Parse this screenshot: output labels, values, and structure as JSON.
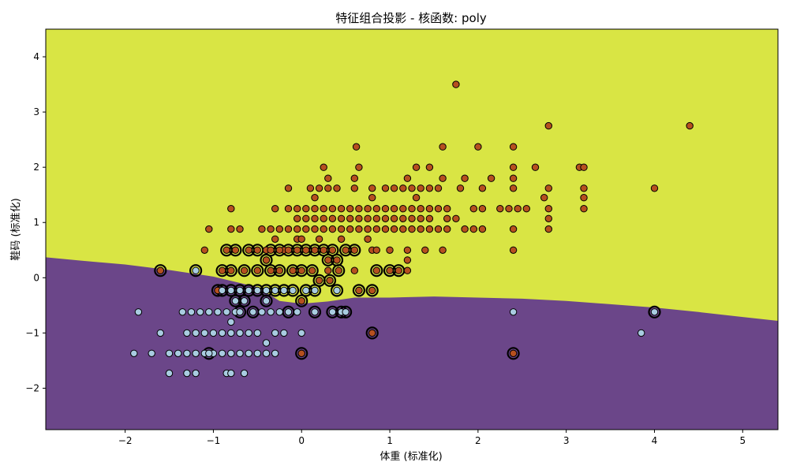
{
  "chart_data": {
    "type": "scatter",
    "title": "特征组合投影 - 核函数: poly",
    "xlabel": "体重 (标准化)",
    "ylabel": "鞋码 (标准化)",
    "xlim": [
      -2.9,
      5.4
    ],
    "ylim": [
      -2.75,
      4.5
    ],
    "xticks": [
      -2,
      -1,
      0,
      1,
      2,
      3,
      4,
      5
    ],
    "xtick_labels": [
      "−2",
      "−1",
      "0",
      "1",
      "2",
      "3",
      "4",
      "5"
    ],
    "yticks": [
      -2,
      -1,
      0,
      1,
      2,
      3,
      4
    ],
    "ytick_labels": [
      "−2",
      "−1",
      "0",
      "1",
      "2",
      "3",
      "4"
    ],
    "grid": false,
    "colors": {
      "region_upper": "#d9e544",
      "region_lower": "#6b4689",
      "class_a": "#b6501f",
      "class_b": "#a9cce1",
      "edge": "#000000"
    },
    "decision_boundary": [
      [
        -2.9,
        0.37
      ],
      [
        -2.5,
        0.31
      ],
      [
        -2.0,
        0.24
      ],
      [
        -1.5,
        0.14
      ],
      [
        -1.0,
        0.02
      ],
      [
        -0.5,
        -0.17
      ],
      [
        -0.25,
        -0.42
      ],
      [
        0.0,
        -0.47
      ],
      [
        0.3,
        -0.43
      ],
      [
        0.6,
        -0.36
      ],
      [
        1.0,
        -0.36
      ],
      [
        1.5,
        -0.34
      ],
      [
        2.0,
        -0.36
      ],
      [
        2.5,
        -0.38
      ],
      [
        3.0,
        -0.42
      ],
      [
        3.5,
        -0.48
      ],
      [
        4.0,
        -0.54
      ],
      [
        4.5,
        -0.62
      ],
      [
        5.0,
        -0.71
      ],
      [
        5.4,
        -0.78
      ]
    ],
    "series": [
      {
        "class": "A",
        "points": [
          [
            1.75,
            3.5
          ],
          [
            0.62,
            2.37
          ],
          [
            1.6,
            2.37
          ],
          [
            2.0,
            2.37
          ],
          [
            2.4,
            2.37
          ],
          [
            2.8,
            2.75
          ],
          [
            4.4,
            2.75
          ],
          [
            0.25,
            2.0
          ],
          [
            0.65,
            2.0
          ],
          [
            1.3,
            2.0
          ],
          [
            1.45,
            2.0
          ],
          [
            2.4,
            2.0
          ],
          [
            2.65,
            2.0
          ],
          [
            3.15,
            2.0
          ],
          [
            3.2,
            2.0
          ],
          [
            -0.15,
            1.62
          ],
          [
            0.1,
            1.62
          ],
          [
            0.2,
            1.62
          ],
          [
            0.3,
            1.62
          ],
          [
            0.4,
            1.62
          ],
          [
            0.6,
            1.62
          ],
          [
            0.8,
            1.62
          ],
          [
            0.95,
            1.62
          ],
          [
            1.05,
            1.62
          ],
          [
            1.15,
            1.62
          ],
          [
            1.25,
            1.62
          ],
          [
            1.35,
            1.62
          ],
          [
            1.45,
            1.62
          ],
          [
            1.55,
            1.62
          ],
          [
            1.8,
            1.62
          ],
          [
            2.05,
            1.62
          ],
          [
            2.4,
            1.62
          ],
          [
            2.8,
            1.62
          ],
          [
            3.2,
            1.62
          ],
          [
            4.0,
            1.62
          ],
          [
            0.3,
            1.8
          ],
          [
            0.6,
            1.8
          ],
          [
            1.2,
            1.8
          ],
          [
            1.6,
            1.8
          ],
          [
            1.85,
            1.8
          ],
          [
            2.15,
            1.8
          ],
          [
            2.4,
            1.8
          ],
          [
            0.15,
            1.45
          ],
          [
            0.8,
            1.45
          ],
          [
            1.3,
            1.45
          ],
          [
            2.75,
            1.45
          ],
          [
            3.2,
            1.45
          ],
          [
            -0.8,
            1.25
          ],
          [
            -0.3,
            1.25
          ],
          [
            -0.15,
            1.25
          ],
          [
            -0.05,
            1.25
          ],
          [
            0.05,
            1.25
          ],
          [
            0.15,
            1.25
          ],
          [
            0.25,
            1.25
          ],
          [
            0.35,
            1.25
          ],
          [
            0.45,
            1.25
          ],
          [
            0.55,
            1.25
          ],
          [
            0.65,
            1.25
          ],
          [
            0.75,
            1.25
          ],
          [
            0.85,
            1.25
          ],
          [
            0.95,
            1.25
          ],
          [
            1.05,
            1.25
          ],
          [
            1.15,
            1.25
          ],
          [
            1.25,
            1.25
          ],
          [
            1.35,
            1.25
          ],
          [
            1.45,
            1.25
          ],
          [
            1.55,
            1.25
          ],
          [
            1.65,
            1.25
          ],
          [
            1.95,
            1.25
          ],
          [
            2.05,
            1.25
          ],
          [
            2.25,
            1.25
          ],
          [
            2.35,
            1.25
          ],
          [
            2.45,
            1.25
          ],
          [
            2.55,
            1.25
          ],
          [
            2.8,
            1.25
          ],
          [
            3.2,
            1.25
          ],
          [
            -0.05,
            1.07
          ],
          [
            0.05,
            1.07
          ],
          [
            0.15,
            1.07
          ],
          [
            0.25,
            1.07
          ],
          [
            0.35,
            1.07
          ],
          [
            0.45,
            1.07
          ],
          [
            0.55,
            1.07
          ],
          [
            0.65,
            1.07
          ],
          [
            0.75,
            1.07
          ],
          [
            0.85,
            1.07
          ],
          [
            0.95,
            1.07
          ],
          [
            1.05,
            1.07
          ],
          [
            1.15,
            1.07
          ],
          [
            1.25,
            1.07
          ],
          [
            1.35,
            1.07
          ],
          [
            1.45,
            1.07
          ],
          [
            1.65,
            1.07
          ],
          [
            1.75,
            1.07
          ],
          [
            2.8,
            1.07
          ],
          [
            -1.05,
            0.88
          ],
          [
            -0.8,
            0.88
          ],
          [
            -0.7,
            0.88
          ],
          [
            -0.45,
            0.88
          ],
          [
            -0.35,
            0.88
          ],
          [
            -0.25,
            0.88
          ],
          [
            -0.15,
            0.88
          ],
          [
            -0.05,
            0.88
          ],
          [
            0.05,
            0.88
          ],
          [
            0.15,
            0.88
          ],
          [
            0.25,
            0.88
          ],
          [
            0.35,
            0.88
          ],
          [
            0.45,
            0.88
          ],
          [
            0.55,
            0.88
          ],
          [
            0.65,
            0.88
          ],
          [
            0.75,
            0.88
          ],
          [
            0.85,
            0.88
          ],
          [
            0.95,
            0.88
          ],
          [
            1.05,
            0.88
          ],
          [
            1.15,
            0.88
          ],
          [
            1.25,
            0.88
          ],
          [
            1.35,
            0.88
          ],
          [
            1.45,
            0.88
          ],
          [
            1.55,
            0.88
          ],
          [
            1.65,
            0.88
          ],
          [
            1.85,
            0.88
          ],
          [
            1.95,
            0.88
          ],
          [
            2.05,
            0.88
          ],
          [
            2.4,
            0.88
          ],
          [
            2.8,
            0.88
          ],
          [
            -0.3,
            0.7
          ],
          [
            -0.05,
            0.7
          ],
          [
            0.0,
            0.7
          ],
          [
            0.2,
            0.7
          ],
          [
            0.45,
            0.7
          ],
          [
            0.75,
            0.7
          ],
          [
            -1.1,
            0.5
          ],
          [
            -0.4,
            0.5
          ],
          [
            -0.2,
            0.5
          ],
          [
            0.8,
            0.5
          ],
          [
            1.0,
            0.5
          ],
          [
            1.2,
            0.5
          ],
          [
            1.4,
            0.5
          ],
          [
            1.6,
            0.5
          ],
          [
            2.4,
            0.5
          ],
          [
            0.85,
            0.5
          ],
          [
            1.2,
            0.32
          ],
          [
            0.3,
            0.32
          ],
          [
            1.2,
            0.13
          ],
          [
            0.6,
            0.13
          ],
          [
            0.3,
            0.13
          ],
          [
            -1.6,
            0.13
          ],
          [
            -0.4,
            0.32
          ],
          [
            -0.1,
            0.13
          ],
          [
            0.2,
            -0.05
          ],
          [
            0.32,
            -0.05
          ],
          [
            -0.95,
            -0.23
          ],
          [
            0.8,
            -0.23
          ],
          [
            0.65,
            -0.23
          ],
          [
            0.0,
            -0.42
          ],
          [
            0.8,
            -1.0
          ],
          [
            0.0,
            -1.37
          ],
          [
            2.4,
            -1.37
          ]
        ],
        "support_vectors": [
          [
            -1.6,
            0.13
          ],
          [
            -0.4,
            0.32
          ],
          [
            0.3,
            0.32
          ],
          [
            0.4,
            0.32
          ],
          [
            -0.1,
            0.13
          ],
          [
            0.2,
            -0.05
          ],
          [
            0.32,
            -0.05
          ],
          [
            -0.95,
            -0.23
          ],
          [
            0.65,
            -0.23
          ],
          [
            0.8,
            -0.23
          ],
          [
            0.0,
            -0.42
          ],
          [
            0.8,
            -1.0
          ],
          [
            0.0,
            -1.37
          ],
          [
            2.4,
            -1.37
          ],
          [
            -0.85,
            0.5
          ],
          [
            -0.75,
            0.5
          ],
          [
            -0.6,
            0.5
          ],
          [
            -0.5,
            0.5
          ],
          [
            -0.35,
            0.5
          ],
          [
            -0.25,
            0.5
          ],
          [
            -0.15,
            0.5
          ],
          [
            -0.05,
            0.5
          ],
          [
            0.05,
            0.5
          ],
          [
            0.15,
            0.5
          ],
          [
            0.25,
            0.5
          ],
          [
            0.35,
            0.5
          ],
          [
            0.5,
            0.5
          ],
          [
            0.6,
            0.5
          ],
          [
            -0.9,
            0.13
          ],
          [
            -0.8,
            0.13
          ],
          [
            -0.65,
            0.13
          ],
          [
            -0.5,
            0.13
          ],
          [
            -0.35,
            0.13
          ],
          [
            -0.25,
            0.13
          ],
          [
            0.0,
            0.13
          ],
          [
            0.12,
            0.13
          ],
          [
            0.42,
            0.13
          ],
          [
            0.85,
            0.13
          ],
          [
            1.0,
            0.13
          ],
          [
            1.1,
            0.13
          ]
        ]
      },
      {
        "class": "B",
        "points": [
          [
            -1.85,
            -0.62
          ],
          [
            -1.35,
            -0.62
          ],
          [
            -1.25,
            -0.62
          ],
          [
            -1.15,
            -0.62
          ],
          [
            -1.05,
            -0.62
          ],
          [
            -0.95,
            -0.62
          ],
          [
            -0.85,
            -0.62
          ],
          [
            -0.75,
            -0.62
          ],
          [
            -0.55,
            -0.62
          ],
          [
            -0.45,
            -0.62
          ],
          [
            -0.35,
            -0.62
          ],
          [
            -0.25,
            -0.62
          ],
          [
            -0.15,
            -0.62
          ],
          [
            -0.05,
            -0.62
          ],
          [
            2.4,
            -0.62
          ],
          [
            -0.8,
            -0.8
          ],
          [
            -1.6,
            -1.0
          ],
          [
            -1.3,
            -1.0
          ],
          [
            -1.2,
            -1.0
          ],
          [
            -1.1,
            -1.0
          ],
          [
            -1.0,
            -1.0
          ],
          [
            -0.9,
            -1.0
          ],
          [
            -0.8,
            -1.0
          ],
          [
            -0.7,
            -1.0
          ],
          [
            -0.6,
            -1.0
          ],
          [
            -0.5,
            -1.0
          ],
          [
            -0.3,
            -1.0
          ],
          [
            -0.2,
            -1.0
          ],
          [
            0.0,
            -1.0
          ],
          [
            3.85,
            -1.0
          ],
          [
            -0.4,
            -1.18
          ],
          [
            -1.9,
            -1.37
          ],
          [
            -1.7,
            -1.37
          ],
          [
            -1.5,
            -1.37
          ],
          [
            -1.4,
            -1.37
          ],
          [
            -1.3,
            -1.37
          ],
          [
            -1.2,
            -1.37
          ],
          [
            -1.1,
            -1.37
          ],
          [
            -1.0,
            -1.37
          ],
          [
            -0.9,
            -1.37
          ],
          [
            -0.8,
            -1.37
          ],
          [
            -0.7,
            -1.37
          ],
          [
            -0.6,
            -1.37
          ],
          [
            -0.5,
            -1.37
          ],
          [
            -0.4,
            -1.37
          ],
          [
            -0.3,
            -1.37
          ],
          [
            -1.5,
            -1.73
          ],
          [
            -1.3,
            -1.73
          ],
          [
            -1.2,
            -1.73
          ],
          [
            -0.85,
            -1.73
          ],
          [
            -0.8,
            -1.73
          ],
          [
            -0.65,
            -1.73
          ]
        ],
        "support_vectors": [
          [
            -1.2,
            0.13
          ],
          [
            -0.75,
            -0.42
          ],
          [
            -0.65,
            -0.42
          ],
          [
            -0.4,
            -0.42
          ],
          [
            -0.9,
            -0.23
          ],
          [
            -0.8,
            -0.23
          ],
          [
            -0.7,
            -0.23
          ],
          [
            -0.6,
            -0.23
          ],
          [
            -0.5,
            -0.23
          ],
          [
            -0.4,
            -0.23
          ],
          [
            -0.3,
            -0.23
          ],
          [
            -0.2,
            -0.23
          ],
          [
            -0.1,
            -0.23
          ],
          [
            0.05,
            -0.23
          ],
          [
            0.15,
            -0.23
          ],
          [
            0.4,
            -0.23
          ],
          [
            -0.7,
            -0.62
          ],
          [
            -0.55,
            -0.62
          ],
          [
            -0.15,
            -0.62
          ],
          [
            0.15,
            -0.62
          ],
          [
            0.35,
            -0.62
          ],
          [
            0.45,
            -0.62
          ],
          [
            0.5,
            -0.62
          ],
          [
            4.0,
            -0.62
          ],
          [
            -1.05,
            -1.37
          ]
        ]
      }
    ]
  }
}
